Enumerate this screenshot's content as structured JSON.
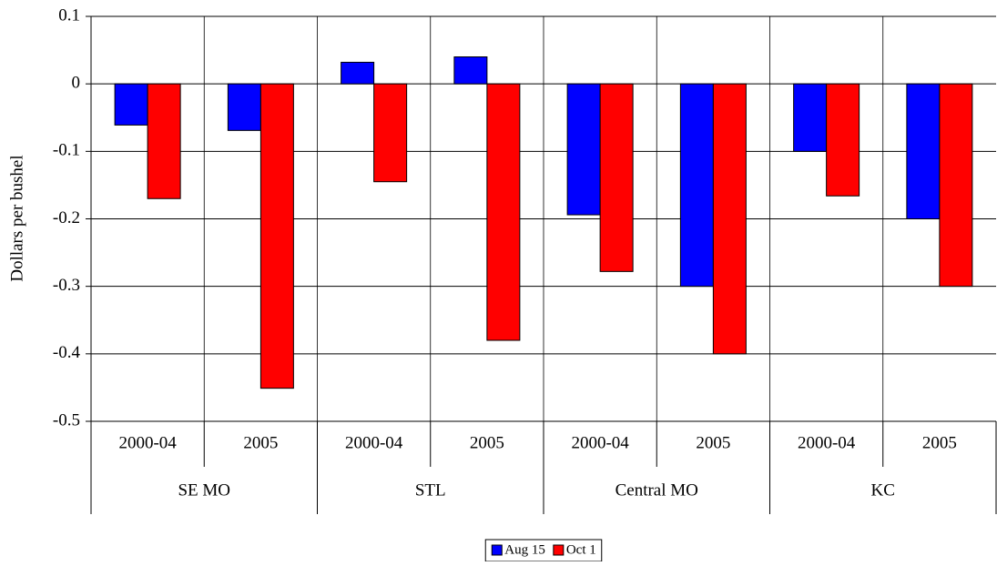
{
  "chart_data": {
    "type": "bar",
    "y_label": "Dollars per bushel",
    "categories": [
      "2000-04",
      "2005",
      "2000-04",
      "2005",
      "2000-04",
      "2005",
      "2000-04",
      "2005"
    ],
    "groups": [
      "SE MO",
      "STL",
      "Central MO",
      "KC"
    ],
    "series": [
      {
        "name": "Aug 15",
        "color": "#0000ff",
        "values": [
          -0.061,
          -0.069,
          0.032,
          0.04,
          -0.194,
          -0.3,
          -0.1,
          -0.2
        ]
      },
      {
        "name": "Oct 1",
        "color": "#ff0000",
        "values": [
          -0.17,
          -0.451,
          -0.145,
          -0.38,
          -0.278,
          -0.4,
          -0.166,
          -0.3
        ]
      }
    ],
    "ylim": [
      -0.5,
      0.1
    ],
    "yticks": [
      0.1,
      0,
      -0.1,
      -0.2,
      -0.3,
      -0.4,
      -0.5
    ],
    "grid": true,
    "legend": "bottom"
  }
}
